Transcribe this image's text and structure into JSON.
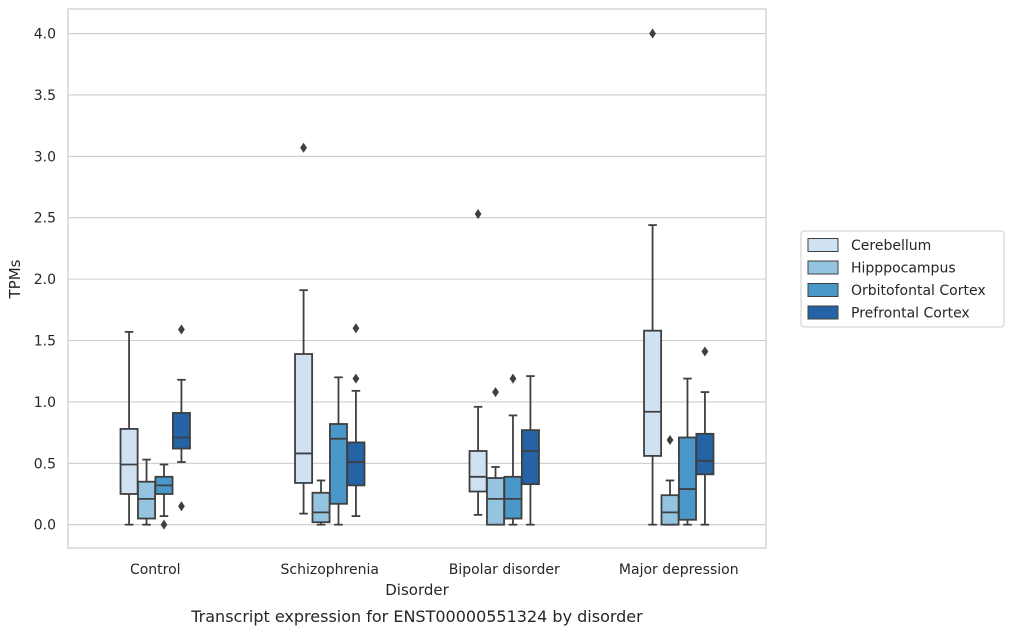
{
  "chart_data": {
    "type": "box",
    "caption": "Transcript expression for ENST00000551324 by disorder",
    "xlabel": "Disorder",
    "ylabel": "TPMs",
    "ylim": [
      -0.19,
      4.2
    ],
    "yticks": [
      0.0,
      0.5,
      1.0,
      1.5,
      2.0,
      2.5,
      3.0,
      3.5,
      4.0
    ],
    "ytick_labels": [
      "0.0",
      "0.5",
      "1.0",
      "1.5",
      "2.0",
      "2.5",
      "3.0",
      "3.5",
      "4.0"
    ],
    "grid": "horizontal",
    "legend_position": "right, outside plot",
    "categories": [
      "Control",
      "Schizophrenia",
      "Bipolar disorder",
      "Major depression"
    ],
    "series": [
      {
        "name": "Cerebellum",
        "color": "#d0e1f2",
        "boxes": [
          {
            "whisker_low": 0.0,
            "q1": 0.25,
            "median": 0.49,
            "q3": 0.78,
            "whisker_high": 1.57,
            "outliers": []
          },
          {
            "whisker_low": 0.09,
            "q1": 0.34,
            "median": 0.58,
            "q3": 1.39,
            "whisker_high": 1.91,
            "outliers": [
              3.07
            ]
          },
          {
            "whisker_low": 0.08,
            "q1": 0.27,
            "median": 0.39,
            "q3": 0.6,
            "whisker_high": 0.96,
            "outliers": [
              2.53
            ]
          },
          {
            "whisker_low": 0.0,
            "q1": 0.56,
            "median": 0.92,
            "q3": 1.58,
            "whisker_high": 2.44,
            "outliers": [
              4.0
            ]
          }
        ]
      },
      {
        "name": "Hipppocampus",
        "color": "#94c4df",
        "boxes": [
          {
            "whisker_low": 0.0,
            "q1": 0.05,
            "median": 0.21,
            "q3": 0.35,
            "whisker_high": 0.53,
            "outliers": []
          },
          {
            "whisker_low": 0.0,
            "q1": 0.02,
            "median": 0.1,
            "q3": 0.26,
            "whisker_high": 0.36,
            "outliers": []
          },
          {
            "whisker_low": 0.0,
            "q1": 0.0,
            "median": 0.21,
            "q3": 0.38,
            "whisker_high": 0.47,
            "outliers": [
              1.08
            ]
          },
          {
            "whisker_low": 0.0,
            "q1": 0.0,
            "median": 0.1,
            "q3": 0.24,
            "whisker_high": 0.36,
            "outliers": [
              0.69
            ]
          }
        ]
      },
      {
        "name": "Orbitofontal Cortex",
        "color": "#4a98c9",
        "boxes": [
          {
            "whisker_low": 0.07,
            "q1": 0.25,
            "median": 0.32,
            "q3": 0.39,
            "whisker_high": 0.49,
            "outliers": [
              0.0
            ]
          },
          {
            "whisker_low": 0.0,
            "q1": 0.17,
            "median": 0.7,
            "q3": 0.82,
            "whisker_high": 1.2,
            "outliers": []
          },
          {
            "whisker_low": 0.0,
            "q1": 0.05,
            "median": 0.21,
            "q3": 0.39,
            "whisker_high": 0.89,
            "outliers": [
              1.19
            ]
          },
          {
            "whisker_low": 0.0,
            "q1": 0.04,
            "median": 0.29,
            "q3": 0.71,
            "whisker_high": 1.19,
            "outliers": []
          }
        ]
      },
      {
        "name": "Prefrontal Cortex",
        "color": "#2464a6",
        "boxes": [
          {
            "whisker_low": 0.51,
            "q1": 0.62,
            "median": 0.71,
            "q3": 0.91,
            "whisker_high": 1.18,
            "outliers": [
              1.59,
              0.15
            ]
          },
          {
            "whisker_low": 0.07,
            "q1": 0.32,
            "median": 0.51,
            "q3": 0.67,
            "whisker_high": 1.09,
            "outliers": [
              1.6,
              1.19
            ]
          },
          {
            "whisker_low": 0.0,
            "q1": 0.33,
            "median": 0.6,
            "q3": 0.77,
            "whisker_high": 1.21,
            "outliers": []
          },
          {
            "whisker_low": 0.0,
            "q1": 0.41,
            "median": 0.52,
            "q3": 0.74,
            "whisker_high": 1.08,
            "outliers": [
              1.41
            ]
          }
        ]
      }
    ]
  }
}
